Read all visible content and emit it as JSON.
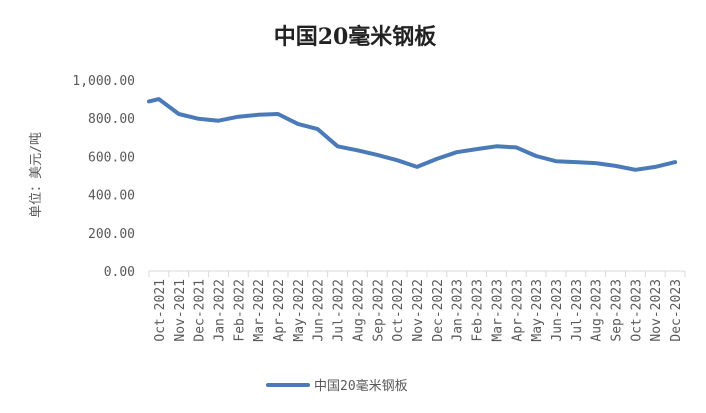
{
  "chart_data": {
    "type": "line",
    "title": "中国20毫米钢板",
    "xlabel": "",
    "ylabel": "单位：美元/吨",
    "ylim": [
      0,
      1000
    ],
    "yticks": [
      "0.00",
      "200.00",
      "400.00",
      "600.00",
      "800.00",
      "1,000.00"
    ],
    "grid": false,
    "legend": "bottom",
    "categories": [
      "Oct-2021",
      "Nov-2021",
      "Dec-2021",
      "Jan-2022",
      "Feb-2022",
      "Mar-2022",
      "Apr-2022",
      "May-2022",
      "Jun-2022",
      "Jul-2022",
      "Aug-2022",
      "Sep-2022",
      "Oct-2022",
      "Nov-2022",
      "Dec-2022",
      "Jan-2023",
      "Feb-2023",
      "Mar-2023",
      "Apr-2023",
      "May-2023",
      "Jun-2023",
      "Jul-2023",
      "Aug-2023",
      "Sep-2023",
      "Oct-2023",
      "Nov-2023",
      "Dec-2023"
    ],
    "series": [
      {
        "name": "中国20毫米钢板",
        "color": "#4a7ab8",
        "x": [
          0,
          0.5,
          1.5,
          2.5,
          3.5,
          4.5,
          5.5,
          6.5,
          7.5,
          8.5,
          9.5,
          10.5,
          11.5,
          12.5,
          13.5,
          14.5,
          15.5,
          16.5,
          17.5,
          18.5,
          19.5,
          20.5,
          21.5,
          22.5,
          23.5,
          24.5,
          25.5,
          26.5
        ],
        "values": [
          888,
          900,
          822,
          797,
          787,
          808,
          818,
          822,
          770,
          743,
          653,
          632,
          608,
          580,
          545,
          587,
          622,
          638,
          653,
          647,
          602,
          575,
          570,
          565,
          550,
          530,
          545,
          570
        ]
      }
    ]
  }
}
